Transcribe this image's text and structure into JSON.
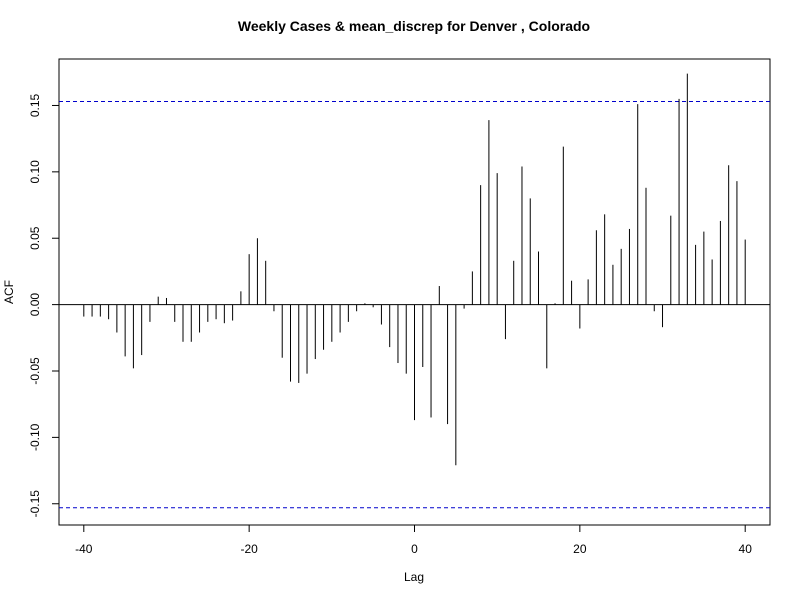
{
  "chart_data": {
    "type": "bar",
    "title": "Weekly Cases & mean_discrep for Denver , Colorado",
    "xlabel": "Lag",
    "ylabel": "ACF",
    "xlim": [
      -43,
      43
    ],
    "ylim": [
      -0.166,
      0.185
    ],
    "x_ticks": [
      -40,
      -20,
      0,
      20,
      40
    ],
    "x_tick_labels": [
      "-40",
      "-20",
      "0",
      "20",
      "40"
    ],
    "y_ticks": [
      -0.15,
      -0.1,
      -0.05,
      0.0,
      0.05,
      0.1,
      0.15
    ],
    "y_tick_labels": [
      "-0.15",
      "-0.10",
      "-0.05",
      "0.00",
      "0.05",
      "0.10",
      "0.15"
    ],
    "confidence_band": [
      -0.153,
      0.153
    ],
    "colors": {
      "bars": "#000000",
      "confidence_lines": "#0000cc",
      "frame": "#000000"
    },
    "lags": [
      -40,
      -39,
      -38,
      -37,
      -36,
      -35,
      -34,
      -33,
      -32,
      -31,
      -30,
      -29,
      -28,
      -27,
      -26,
      -25,
      -24,
      -23,
      -22,
      -21,
      -20,
      -19,
      -18,
      -17,
      -16,
      -15,
      -14,
      -13,
      -12,
      -11,
      -10,
      -9,
      -8,
      -7,
      -6,
      -5,
      -4,
      -3,
      -2,
      -1,
      0,
      1,
      2,
      3,
      4,
      5,
      6,
      7,
      8,
      9,
      10,
      11,
      12,
      13,
      14,
      15,
      16,
      17,
      18,
      19,
      20,
      21,
      22,
      23,
      24,
      25,
      26,
      27,
      28,
      29,
      30,
      31,
      32,
      33,
      34,
      35,
      36,
      37,
      38,
      39,
      40
    ],
    "values": [
      -0.009,
      -0.009,
      -0.009,
      -0.011,
      -0.021,
      -0.039,
      -0.048,
      -0.038,
      -0.013,
      0.006,
      0.005,
      -0.013,
      -0.028,
      -0.028,
      -0.021,
      -0.013,
      -0.011,
      -0.014,
      -0.012,
      0.01,
      0.038,
      0.05,
      0.033,
      -0.005,
      -0.04,
      -0.058,
      -0.059,
      -0.052,
      -0.041,
      -0.034,
      -0.028,
      -0.021,
      -0.013,
      -0.005,
      0.001,
      -0.002,
      -0.015,
      -0.032,
      -0.044,
      -0.052,
      -0.087,
      -0.047,
      -0.085,
      0.014,
      -0.09,
      -0.121,
      -0.003,
      0.025,
      0.09,
      0.139,
      0.099,
      -0.026,
      0.033,
      0.104,
      0.08,
      0.04,
      -0.048,
      0.001,
      0.119,
      0.018,
      -0.018,
      0.019,
      0.056,
      0.068,
      0.03,
      0.042,
      0.057,
      0.151,
      0.088,
      -0.005,
      -0.017,
      0.067,
      0.155,
      0.174,
      0.045,
      0.055,
      0.034,
      0.063,
      0.105,
      0.093,
      0.049
    ]
  }
}
